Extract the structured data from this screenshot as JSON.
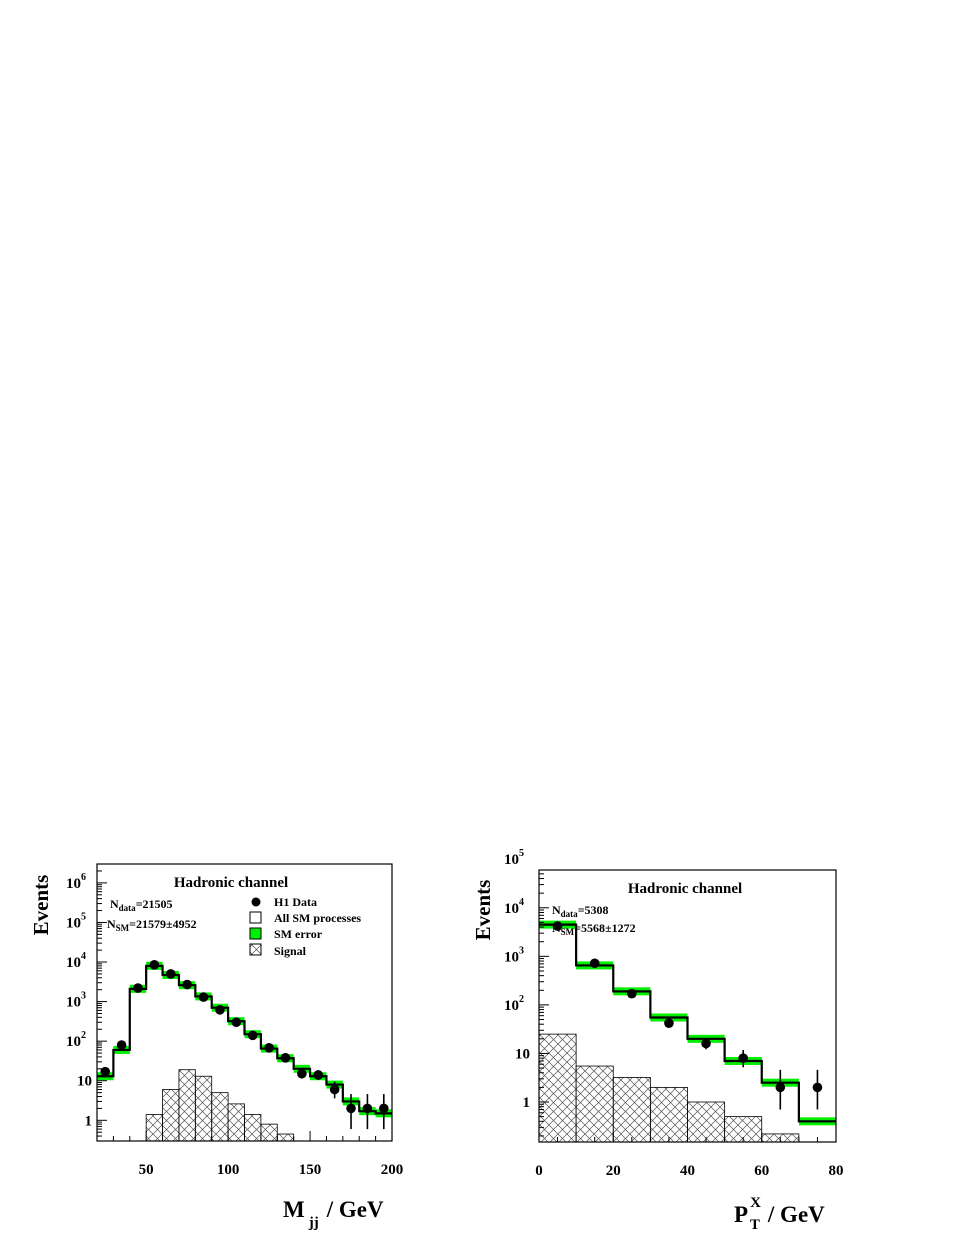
{
  "chart_data": [
    {
      "type": "histogram",
      "title": "Hadronic channel",
      "xlabel": "M",
      "xlabel_sub": "jj",
      "xlabel_unit": "/ GeV",
      "ylabel": "Events",
      "xlim": [
        20,
        200
      ],
      "ylim": [
        0.3,
        3000000
      ],
      "log_y": true,
      "x_ticks": [
        50,
        100,
        150,
        200
      ],
      "y_ticks": [
        {
          "value": 1,
          "base": "1",
          "exp": ""
        },
        {
          "value": 10,
          "base": "10",
          "exp": ""
        },
        {
          "value": 100,
          "base": "10",
          "exp": "2"
        },
        {
          "value": 1000,
          "base": "10",
          "exp": "3"
        },
        {
          "value": 10000,
          "base": "10",
          "exp": "4"
        },
        {
          "value": 100000,
          "base": "10",
          "exp": "5"
        },
        {
          "value": 1000000,
          "base": "10",
          "exp": "6"
        }
      ],
      "n_data": {
        "label": "N",
        "sub": "data",
        "value": "=21505"
      },
      "n_sm": {
        "label": "N",
        "sub": "SM",
        "value": "=21579±4952"
      },
      "legend": [
        {
          "label": "H1 Data",
          "kind": "marker"
        },
        {
          "label": "All SM processes",
          "kind": "open"
        },
        {
          "label": "SM error",
          "kind": "band"
        },
        {
          "label": "Signal",
          "kind": "hatch"
        }
      ],
      "bin_edges": [
        20,
        30,
        40,
        50,
        60,
        70,
        80,
        90,
        100,
        110,
        120,
        130,
        140,
        150,
        160,
        170,
        180,
        190,
        200
      ],
      "sm": [
        13,
        60,
        2100,
        8000,
        4700,
        2600,
        1350,
        700,
        320,
        150,
        65,
        37,
        20,
        13,
        8,
        3,
        1.7,
        1.5
      ],
      "data": [
        {
          "x": 25,
          "y": 17,
          "err": [
            3,
            4
          ]
        },
        {
          "x": 35,
          "y": 80,
          "err": [
            9,
            10
          ]
        },
        {
          "x": 45,
          "y": 2200,
          "err": [
            45,
            50
          ]
        },
        {
          "x": 55,
          "y": 8500,
          "err": [
            90,
            95
          ]
        },
        {
          "x": 65,
          "y": 5000,
          "err": [
            70,
            75
          ]
        },
        {
          "x": 75,
          "y": 2700,
          "err": [
            50,
            55
          ]
        },
        {
          "x": 85,
          "y": 1300,
          "err": [
            35,
            38
          ]
        },
        {
          "x": 95,
          "y": 620,
          "err": [
            25,
            27
          ]
        },
        {
          "x": 105,
          "y": 300,
          "err": [
            17,
            18
          ]
        },
        {
          "x": 115,
          "y": 140,
          "err": [
            12,
            13
          ]
        },
        {
          "x": 125,
          "y": 68,
          "err": [
            8,
            9
          ]
        },
        {
          "x": 135,
          "y": 38,
          "err": [
            6,
            7
          ]
        },
        {
          "x": 145,
          "y": 15,
          "err": [
            3.5,
            4.5
          ]
        },
        {
          "x": 155,
          "y": 14,
          "err": [
            3.5,
            4.5
          ]
        },
        {
          "x": 165,
          "y": 6,
          "err": [
            2.4,
            3.5
          ]
        },
        {
          "x": 175,
          "y": 2,
          "err": [
            1.4,
            2.6
          ]
        },
        {
          "x": 185,
          "y": 2,
          "err": [
            1.4,
            2.6
          ]
        },
        {
          "x": 195,
          "y": 2,
          "err": [
            1.4,
            2.6
          ]
        }
      ],
      "signal": [
        0,
        0,
        0,
        1.4,
        6,
        19,
        13,
        5,
        2.6,
        1.4,
        0.8,
        0.45,
        0,
        0,
        0,
        0,
        0,
        0
      ]
    },
    {
      "type": "histogram",
      "title": "Hadronic channel",
      "xlabel": "P",
      "xlabel_sub": "T",
      "xlabel_sup": "X",
      "xlabel_unit": "/ GeV",
      "ylabel": "Events",
      "xlim": [
        0,
        80
      ],
      "ylim": [
        0.15,
        60000
      ],
      "log_y": true,
      "x_ticks": [
        0,
        20,
        40,
        60,
        80
      ],
      "y_ticks": [
        {
          "value": 1,
          "base": "1",
          "exp": ""
        },
        {
          "value": 10,
          "base": "10",
          "exp": ""
        },
        {
          "value": 100,
          "base": "10",
          "exp": "2"
        },
        {
          "value": 1000,
          "base": "10",
          "exp": "3"
        },
        {
          "value": 10000,
          "base": "10",
          "exp": "4"
        },
        {
          "value": 100000,
          "base": "10",
          "exp": "5"
        }
      ],
      "n_data": {
        "label": "N",
        "sub": "data",
        "value": "=5308"
      },
      "n_sm": {
        "label": "N",
        "sub": "SM",
        "value": "=5568±1272"
      },
      "bin_edges": [
        0,
        10,
        20,
        30,
        40,
        50,
        60,
        70,
        80
      ],
      "sm": [
        4500,
        650,
        190,
        55,
        20,
        7,
        2.5,
        0.4
      ],
      "data": [
        {
          "x": 5,
          "y": 4200,
          "err": [
            65,
            70
          ]
        },
        {
          "x": 15,
          "y": 720,
          "err": [
            27,
            28
          ]
        },
        {
          "x": 25,
          "y": 170,
          "err": [
            13,
            14
          ]
        },
        {
          "x": 35,
          "y": 42,
          "err": [
            6.5,
            7.5
          ]
        },
        {
          "x": 45,
          "y": 16,
          "err": [
            3.8,
            4.8
          ]
        },
        {
          "x": 55,
          "y": 8,
          "err": [
            2.8,
            3.8
          ]
        },
        {
          "x": 65,
          "y": 2,
          "err": [
            1.3,
            2.6
          ]
        },
        {
          "x": 75,
          "y": 2,
          "err": [
            1.3,
            2.6
          ]
        }
      ],
      "signal": [
        25,
        5.5,
        3.2,
        2,
        1,
        0.5,
        0.22,
        0
      ]
    }
  ]
}
